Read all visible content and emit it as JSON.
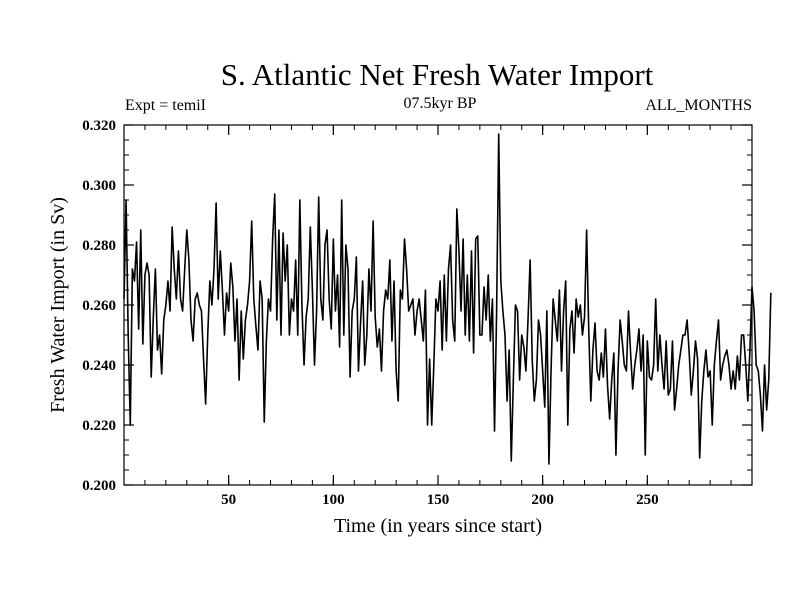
{
  "chart_data": {
    "type": "line",
    "title": "S. Atlantic Net Fresh Water Import",
    "subtitle": "07.5kyr BP",
    "annotation_left": "Expt = temiI",
    "annotation_right": "ALL_MONTHS",
    "xlabel": "Time (in years since start)",
    "ylabel": "Fresh Water Import (in Sv)",
    "xlim": [
      0,
      300
    ],
    "ylim": [
      0.2,
      0.32
    ],
    "x_ticks": [
      50,
      100,
      150,
      200,
      250
    ],
    "x_minor_step": 10,
    "y_ticks": [
      0.2,
      0.22,
      0.24,
      0.26,
      0.28,
      0.3,
      0.32
    ],
    "y_tick_labels": [
      "0.200",
      "0.220",
      "0.240",
      "0.260",
      "0.280",
      "0.300",
      "0.320"
    ],
    "y_minor_step": 0.005,
    "series": [
      {
        "name": "Fresh Water Import",
        "x_start": 0,
        "x_step": 1,
        "values": [
          0.262,
          0.295,
          0.25,
          0.22,
          0.272,
          0.268,
          0.281,
          0.252,
          0.285,
          0.247,
          0.27,
          0.274,
          0.27,
          0.236,
          0.256,
          0.272,
          0.245,
          0.25,
          0.237,
          0.255,
          0.26,
          0.268,
          0.258,
          0.286,
          0.272,
          0.262,
          0.278,
          0.262,
          0.258,
          0.272,
          0.285,
          0.275,
          0.255,
          0.248,
          0.262,
          0.264,
          0.26,
          0.258,
          0.242,
          0.227,
          0.25,
          0.268,
          0.26,
          0.272,
          0.294,
          0.262,
          0.278,
          0.265,
          0.25,
          0.264,
          0.258,
          0.274,
          0.266,
          0.248,
          0.262,
          0.235,
          0.258,
          0.242,
          0.255,
          0.26,
          0.268,
          0.288,
          0.262,
          0.253,
          0.245,
          0.268,
          0.262,
          0.221,
          0.248,
          0.262,
          0.258,
          0.282,
          0.297,
          0.255,
          0.285,
          0.25,
          0.284,
          0.268,
          0.28,
          0.25,
          0.262,
          0.258,
          0.275,
          0.25,
          0.295,
          0.26,
          0.24,
          0.256,
          0.262,
          0.286,
          0.265,
          0.24,
          0.258,
          0.296,
          0.262,
          0.255,
          0.28,
          0.285,
          0.262,
          0.252,
          0.282,
          0.258,
          0.27,
          0.246,
          0.295,
          0.25,
          0.28,
          0.272,
          0.236,
          0.258,
          0.262,
          0.276,
          0.238,
          0.254,
          0.268,
          0.24,
          0.25,
          0.272,
          0.258,
          0.288,
          0.256,
          0.246,
          0.252,
          0.238,
          0.258,
          0.265,
          0.262,
          0.275,
          0.248,
          0.268,
          0.238,
          0.228,
          0.265,
          0.262,
          0.282,
          0.272,
          0.258,
          0.26,
          0.262,
          0.25,
          0.258,
          0.262,
          0.255,
          0.248,
          0.265,
          0.22,
          0.242,
          0.22,
          0.24,
          0.262,
          0.258,
          0.268,
          0.245,
          0.27,
          0.248,
          0.272,
          0.28,
          0.255,
          0.248,
          0.292,
          0.278,
          0.258,
          0.282,
          0.25,
          0.27,
          0.248,
          0.278,
          0.244,
          0.282,
          0.283,
          0.25,
          0.25,
          0.266,
          0.255,
          0.27,
          0.248,
          0.262,
          0.218,
          0.258,
          0.317,
          0.268,
          0.258,
          0.25,
          0.228,
          0.245,
          0.208,
          0.235,
          0.26,
          0.258,
          0.235,
          0.25,
          0.246,
          0.238,
          0.255,
          0.275,
          0.242,
          0.228,
          0.235,
          0.255,
          0.25,
          0.238,
          0.226,
          0.258,
          0.207,
          0.238,
          0.262,
          0.255,
          0.248,
          0.265,
          0.238,
          0.258,
          0.268,
          0.22,
          0.252,
          0.258,
          0.244,
          0.262,
          0.256,
          0.26,
          0.25,
          0.256,
          0.285,
          0.252,
          0.228,
          0.245,
          0.254,
          0.238,
          0.235,
          0.244,
          0.236,
          0.252,
          0.233,
          0.222,
          0.235,
          0.244,
          0.21,
          0.238,
          0.255,
          0.248,
          0.24,
          0.238,
          0.258,
          0.244,
          0.232,
          0.24,
          0.245,
          0.252,
          0.238,
          0.25,
          0.21,
          0.248,
          0.236,
          0.235,
          0.24,
          0.262,
          0.238,
          0.25,
          0.24,
          0.232,
          0.248,
          0.23,
          0.232,
          0.248,
          0.225,
          0.232,
          0.24,
          0.245,
          0.25,
          0.25,
          0.255,
          0.244,
          0.23,
          0.238,
          0.248,
          0.242,
          0.209,
          0.228,
          0.238,
          0.245,
          0.236,
          0.238,
          0.22,
          0.24,
          0.248,
          0.255,
          0.235,
          0.24,
          0.243,
          0.245,
          0.24,
          0.232,
          0.238,
          0.232,
          0.243,
          0.235,
          0.25,
          0.25,
          0.24,
          0.228,
          0.245,
          0.266,
          0.258,
          0.24,
          0.238,
          0.23,
          0.218,
          0.24,
          0.225,
          0.235,
          0.264
        ]
      }
    ]
  }
}
